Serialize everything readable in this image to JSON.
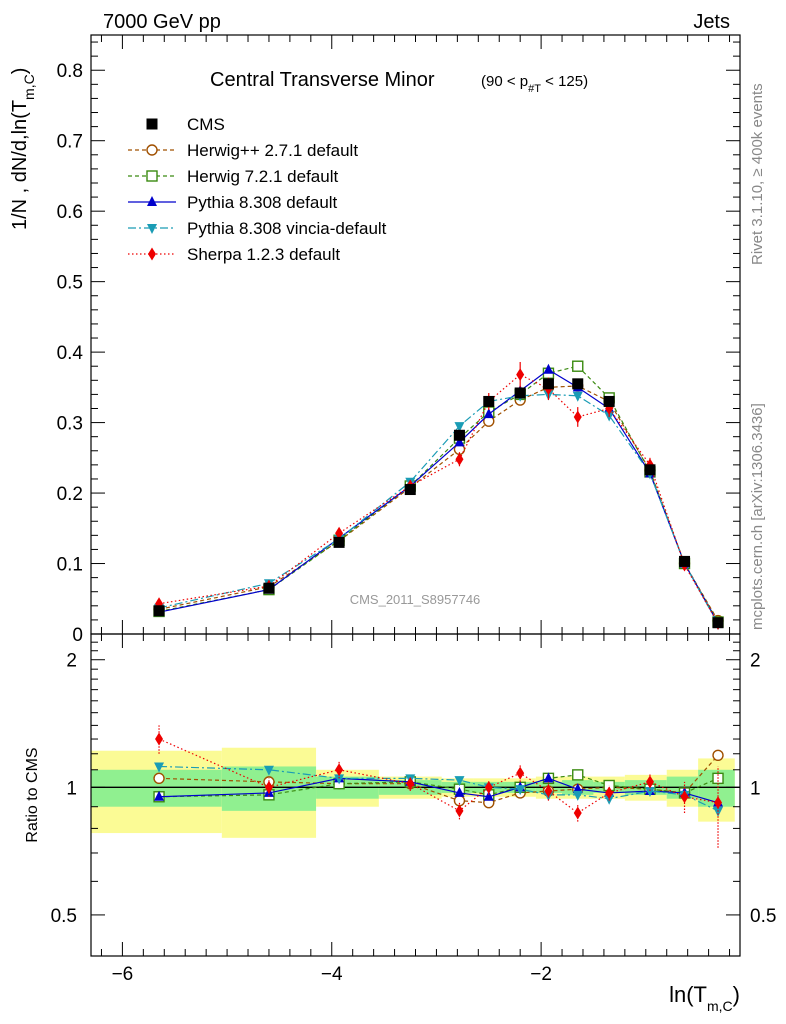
{
  "header": {
    "left": "7000 GeV pp",
    "right": "Jets"
  },
  "side_labels": {
    "rivet": "Rivet 3.1.10, ≥ 400k events",
    "mcplots": "mcplots.cern.ch [arXiv:1306.3436]"
  },
  "chart_data": [
    {
      "type": "line",
      "title_main": "Central Transverse Minor",
      "title_range": "(90 < p",
      "title_range_sub": "#T",
      "title_range_end": " < 125)",
      "ylabel": "1/N , dN/d,ln(T",
      "ylabel_sub": "m,C",
      "ylabel_end": ")",
      "watermark": "CMS_2011_S8957746",
      "xlim": [
        -6.3,
        -0.1
      ],
      "ylim": [
        0,
        0.85
      ],
      "y_ticks": [
        {
          "v": 0,
          "label": "0"
        },
        {
          "v": 0.1,
          "label": "0.1"
        },
        {
          "v": 0.2,
          "label": "0.2"
        },
        {
          "v": 0.3,
          "label": "0.3"
        },
        {
          "v": 0.4,
          "label": "0.4"
        },
        {
          "v": 0.5,
          "label": "0.5"
        },
        {
          "v": 0.6,
          "label": "0.6"
        },
        {
          "v": 0.7,
          "label": "0.7"
        },
        {
          "v": 0.8,
          "label": "0.8"
        }
      ],
      "x": [
        -5.65,
        -4.6,
        -3.93,
        -3.25,
        -2.78,
        -2.5,
        -2.2,
        -1.93,
        -1.65,
        -1.35,
        -0.96,
        -0.63,
        -0.31
      ],
      "series": [
        {
          "name": "CMS",
          "color": "#000000",
          "marker": "square-filled",
          "dash": "",
          "values": [
            0.033,
            0.065,
            0.13,
            0.205,
            0.282,
            0.33,
            0.342,
            0.355,
            0.355,
            0.33,
            0.233,
            0.103,
            0.016
          ],
          "errors": [
            0.003,
            0.004,
            0.004,
            0.005,
            0.006,
            0.006,
            0.006,
            0.007,
            0.007,
            0.007,
            0.006,
            0.005,
            0.003
          ]
        },
        {
          "name": "Herwig++ 2.7.1 default",
          "color": "#a05000",
          "marker": "circle-open",
          "dash": "4,3",
          "values": [
            0.035,
            0.067,
            0.132,
            0.208,
            0.262,
            0.302,
            0.332,
            0.35,
            0.352,
            0.33,
            0.232,
            0.1,
            0.019
          ],
          "errors": []
        },
        {
          "name": "Herwig 7.2.1 default",
          "color": "#3a8a10",
          "marker": "square-open",
          "dash": "4,3",
          "values": [
            0.032,
            0.063,
            0.133,
            0.21,
            0.278,
            0.315,
            0.34,
            0.37,
            0.38,
            0.335,
            0.23,
            0.1,
            0.017
          ],
          "errors": []
        },
        {
          "name": "Pythia 8.308 default",
          "color": "#0000cc",
          "marker": "triangle-up",
          "dash": "",
          "values": [
            0.031,
            0.063,
            0.136,
            0.21,
            0.272,
            0.312,
            0.345,
            0.375,
            0.35,
            0.32,
            0.228,
            0.1,
            0.015
          ],
          "errors": []
        },
        {
          "name": "Pythia 8.308 vincia-default",
          "color": "#1a9cb5",
          "marker": "triangle-down",
          "dash": "8,3,2,3",
          "values": [
            0.037,
            0.072,
            0.135,
            0.216,
            0.295,
            0.33,
            0.338,
            0.34,
            0.338,
            0.31,
            0.228,
            0.1,
            0.014
          ],
          "errors": []
        },
        {
          "name": "Sherpa 1.2.3 default",
          "color": "#ee0000",
          "marker": "diamond",
          "dash": "1.5,2.5",
          "values": [
            0.043,
            0.068,
            0.143,
            0.21,
            0.248,
            0.33,
            0.368,
            0.348,
            0.308,
            0.32,
            0.24,
            0.098,
            0.015
          ],
          "errors": [
            0.005,
            0.004,
            0.006,
            0.008,
            0.01,
            0.012,
            0.018,
            0.016,
            0.014,
            0.012,
            0.01,
            0.008,
            0.004
          ]
        }
      ]
    },
    {
      "type": "line",
      "ylabel": "Ratio to CMS",
      "xlabel": "ln(T",
      "xlabel_sub": "m,C",
      "xlabel_end": ")",
      "ylim": [
        0.4,
        2.3
      ],
      "log_y": true,
      "y_ticks": [
        {
          "v": 0.5,
          "label": "0.5"
        },
        {
          "v": 1,
          "label": "1"
        },
        {
          "v": 2,
          "label": "2"
        }
      ],
      "x_ticks": [
        {
          "v": -6,
          "label": "−6"
        },
        {
          "v": -4,
          "label": "−4"
        },
        {
          "v": -2,
          "label": "−2"
        }
      ],
      "bin_edges": [
        -6.3,
        -5.05,
        -4.15,
        -3.55,
        -2.95,
        -2.65,
        -2.35,
        -2.05,
        -1.8,
        -1.5,
        -1.2,
        -0.8,
        -0.5,
        -0.15
      ],
      "band_inner": [
        0.1,
        0.12,
        0.06,
        0.04,
        0.03,
        0.03,
        0.03,
        0.03,
        0.04,
        0.03,
        0.04,
        0.06,
        0.1
      ],
      "band_outer": [
        0.22,
        0.24,
        0.1,
        0.06,
        0.05,
        0.05,
        0.05,
        0.06,
        0.06,
        0.06,
        0.07,
        0.1,
        0.17
      ],
      "series": [
        {
          "name": "Herwig++ 2.7.1 default",
          "values": [
            1.05,
            1.03,
            1.02,
            1.02,
            0.93,
            0.92,
            0.97,
            0.98,
            0.99,
            1.0,
            0.99,
            0.97,
            1.19
          ]
        },
        {
          "name": "Herwig 7.2.1 default",
          "values": [
            0.95,
            0.96,
            1.02,
            1.03,
            0.99,
            0.96,
            1.0,
            1.05,
            1.07,
            1.01,
            0.99,
            0.97,
            1.05
          ]
        },
        {
          "name": "Pythia 8.308 default",
          "values": [
            0.95,
            0.97,
            1.05,
            1.03,
            0.97,
            0.95,
            1.0,
            1.05,
            0.99,
            0.97,
            0.98,
            0.97,
            0.92
          ]
        },
        {
          "name": "Pythia 8.308 vincia-default",
          "values": [
            1.12,
            1.1,
            1.05,
            1.05,
            1.04,
            1.0,
            0.99,
            0.96,
            0.96,
            0.94,
            0.98,
            0.96,
            0.88
          ]
        },
        {
          "name": "Sherpa 1.2.3 default",
          "values": [
            1.3,
            1.0,
            1.1,
            1.02,
            0.88,
            1.0,
            1.08,
            0.98,
            0.87,
            0.97,
            1.03,
            0.95,
            0.92
          ],
          "errors": [
            0.1,
            0.05,
            0.05,
            0.04,
            0.04,
            0.04,
            0.05,
            0.05,
            0.04,
            0.04,
            0.05,
            0.08,
            0.2
          ]
        }
      ]
    }
  ]
}
